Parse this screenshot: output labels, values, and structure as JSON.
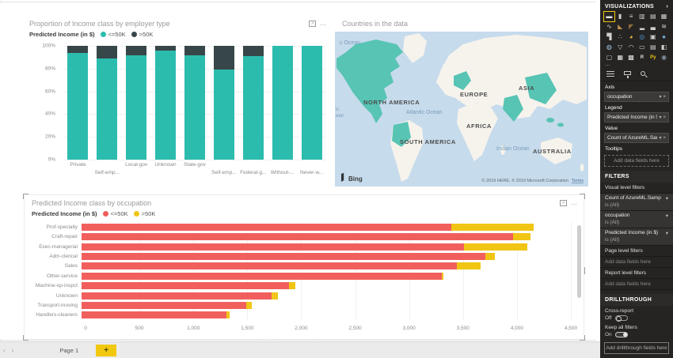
{
  "icons_glyphs": {
    "dropdown": "▾",
    "remove": "×",
    "collapse": "›",
    "more": "…",
    "focus": "↗",
    "prev": "‹",
    "next": "›"
  },
  "chart_data": [
    {
      "type": "bar",
      "subtype": "stacked-column-100",
      "title": "Proportion of Income class by employer type",
      "legend_title": "Predicted Income (in $)",
      "legend_position": "top",
      "categories": [
        "Private",
        "Self-emp...",
        "Local-gov",
        "Unknown",
        "State-gov",
        "Self-emp...",
        "Federal-g...",
        "Without-...",
        "Never-w..."
      ],
      "series": [
        {
          "name": "<=50K",
          "color": "#2cbcae",
          "values": [
            94,
            89,
            92,
            96,
            92,
            79,
            91,
            100,
            100
          ]
        },
        {
          "name": ">50K",
          "color": "#374649",
          "values": [
            6,
            11,
            8,
            4,
            8,
            21,
            9,
            0,
            0
          ]
        }
      ],
      "y_ticks": [
        "100%",
        "80%",
        "60%",
        "40%",
        "20%",
        "0%"
      ],
      "ylim": [
        0,
        100
      ],
      "grid": true,
      "label_rows": [
        1,
        2,
        1,
        1,
        1,
        2,
        2,
        2,
        2
      ]
    },
    {
      "type": "map",
      "title": "Countries in the data",
      "provider": "Bing",
      "attribution": "© 2019 HERE, © 2019 Microsoft Corporation",
      "terms_label": "Terms",
      "highlight_color": "#57c4b4",
      "labels": {
        "ocean_top_left": "c Ocean",
        "left_fragment_1": "ic",
        "left_fragment_2": "ean",
        "north_america": "NORTH AMERICA",
        "europe": "EUROPE",
        "asia": "ASIA",
        "atlantic": "Atlantic Ocean",
        "africa": "AFRICA",
        "south_america": "SOUTH AMERICA",
        "indian": "Indian Ocean",
        "australia": "AUSTRALIA"
      }
    },
    {
      "type": "bar",
      "subtype": "stacked-bar-horizontal",
      "title": "Predicted Income class by occupation",
      "legend_title": "Predicted Income (in $)",
      "legend_position": "top",
      "categories": [
        "Prof-specialty",
        "Craft-repair",
        "Exec-managerial",
        "Adm-clerical",
        "Sales",
        "Other-service",
        "Machine-op-inspct",
        "Unknown",
        "Transport-moving",
        "Handlers-cleaners"
      ],
      "series": [
        {
          "name": "<=50K",
          "color": "#f15f5d",
          "values": [
            3400,
            3970,
            3520,
            3710,
            3450,
            3310,
            1910,
            1750,
            1515,
            1336
          ]
        },
        {
          "name": ">50K",
          "color": "#f0c514",
          "values": [
            760,
            160,
            580,
            90,
            220,
            15,
            55,
            57,
            50,
            24
          ]
        }
      ],
      "x_ticks": [
        "0",
        "500",
        "1,000",
        "1,500",
        "2,000",
        "2,500",
        "3,000",
        "3,500",
        "4,000",
        "4,500"
      ],
      "xlim": [
        0,
        4500
      ],
      "grid": true
    }
  ],
  "panel": {
    "visualizations": {
      "title": "VISUALIZATIONS",
      "selected_index": 0,
      "icons": [
        {
          "name": "stacked-bar-chart",
          "glyph": "▬",
          "color": "#e8e8e8"
        },
        {
          "name": "stacked-column-chart",
          "glyph": "▮",
          "color": "#cfcfcf"
        },
        {
          "name": "clustered-bar-chart",
          "glyph": "≡",
          "color": "#cfcfcf"
        },
        {
          "name": "clustered-column-chart",
          "glyph": "▥",
          "color": "#cfcfcf"
        },
        {
          "name": "100-stacked-bar-chart",
          "glyph": "▤",
          "color": "#cfcfcf"
        },
        {
          "name": "100-stacked-column-chart",
          "glyph": "▦",
          "color": "#cfcfcf"
        },
        {
          "name": "line-chart",
          "glyph": "∿",
          "color": "#cfcfcf"
        },
        {
          "name": "area-chart",
          "glyph": "◣",
          "color": "#bd8f4e"
        },
        {
          "name": "stacked-area-chart",
          "glyph": "◤",
          "color": "#8f6c3c"
        },
        {
          "name": "line-and-stacked-column-chart",
          "glyph": "▂",
          "color": "#cfcfcf"
        },
        {
          "name": "line-and-clustered-column-chart",
          "glyph": "▃",
          "color": "#cfcfcf"
        },
        {
          "name": "ribbon-chart",
          "glyph": "≋",
          "color": "#cfcfcf"
        },
        {
          "name": "waterfall-chart",
          "glyph": "▜",
          "color": "#cfcfcf"
        },
        {
          "name": "scatter-chart",
          "glyph": "∴",
          "color": "#cfcfcf"
        },
        {
          "name": "pie-chart",
          "glyph": "◕",
          "color": "#e0b23e"
        },
        {
          "name": "donut-chart",
          "glyph": "◎",
          "color": "#569bd2"
        },
        {
          "name": "treemap",
          "glyph": "▣",
          "color": "#cfcfcf"
        },
        {
          "name": "map",
          "glyph": "●",
          "color": "#74b2de"
        },
        {
          "name": "filled-map",
          "glyph": "◍",
          "color": "#a3c6e2"
        },
        {
          "name": "funnel",
          "glyph": "▽",
          "color": "#cfcfcf"
        },
        {
          "name": "gauge",
          "glyph": "◠",
          "color": "#cfcfcf"
        },
        {
          "name": "card",
          "glyph": "▭",
          "color": "#cfcfcf"
        },
        {
          "name": "multi-row-card",
          "glyph": "▤",
          "color": "#cfcfcf"
        },
        {
          "name": "kpi",
          "glyph": "◧",
          "color": "#cfcfcf"
        },
        {
          "name": "slicer",
          "glyph": "▢",
          "color": "#cfcfcf"
        },
        {
          "name": "table",
          "glyph": "▦",
          "color": "#e8e8e8"
        },
        {
          "name": "matrix",
          "glyph": "▩",
          "color": "#e8e8e8"
        },
        {
          "name": "r-script-visual",
          "glyph": "R",
          "color": "#dcdcdc"
        },
        {
          "name": "python-visual",
          "glyph": "Py",
          "color": "#f2c80f"
        },
        {
          "name": "arcgis-map",
          "glyph": "◉",
          "color": "#8794a1"
        }
      ],
      "more": "…"
    },
    "wells": {
      "axis_label": "Axis",
      "axis_value": "occupation",
      "legend_label": "Legend",
      "legend_value": "Predicted Income (in $)",
      "value_label": "Value",
      "value_value": "Count of AzureML.Samp",
      "tooltips_label": "Tooltips",
      "add_placeholder": "Add data fields here"
    },
    "filters": {
      "title": "FILTERS",
      "visual_level": "Visual level filters",
      "items": [
        {
          "name": "Count of AzureML.Samp",
          "condition": "is (All)"
        },
        {
          "name": "occupation",
          "condition": "is (All)"
        },
        {
          "name": "Predicted Income (in $)",
          "condition": "is (All)"
        }
      ],
      "page_level": "Page level filters",
      "report_level": "Report level filters",
      "add_placeholder": "Add data fields here"
    },
    "drillthrough": {
      "title": "DRILLTHROUGH",
      "cross_report_label": "Cross-report",
      "cross_report_state": "Off",
      "keep_all_label": "Keep all filters",
      "keep_all_state": "On",
      "add_placeholder": "Add drillthrough fields here"
    }
  },
  "statusbar": {
    "page_tab": "Page 1",
    "add_tab": "+"
  }
}
